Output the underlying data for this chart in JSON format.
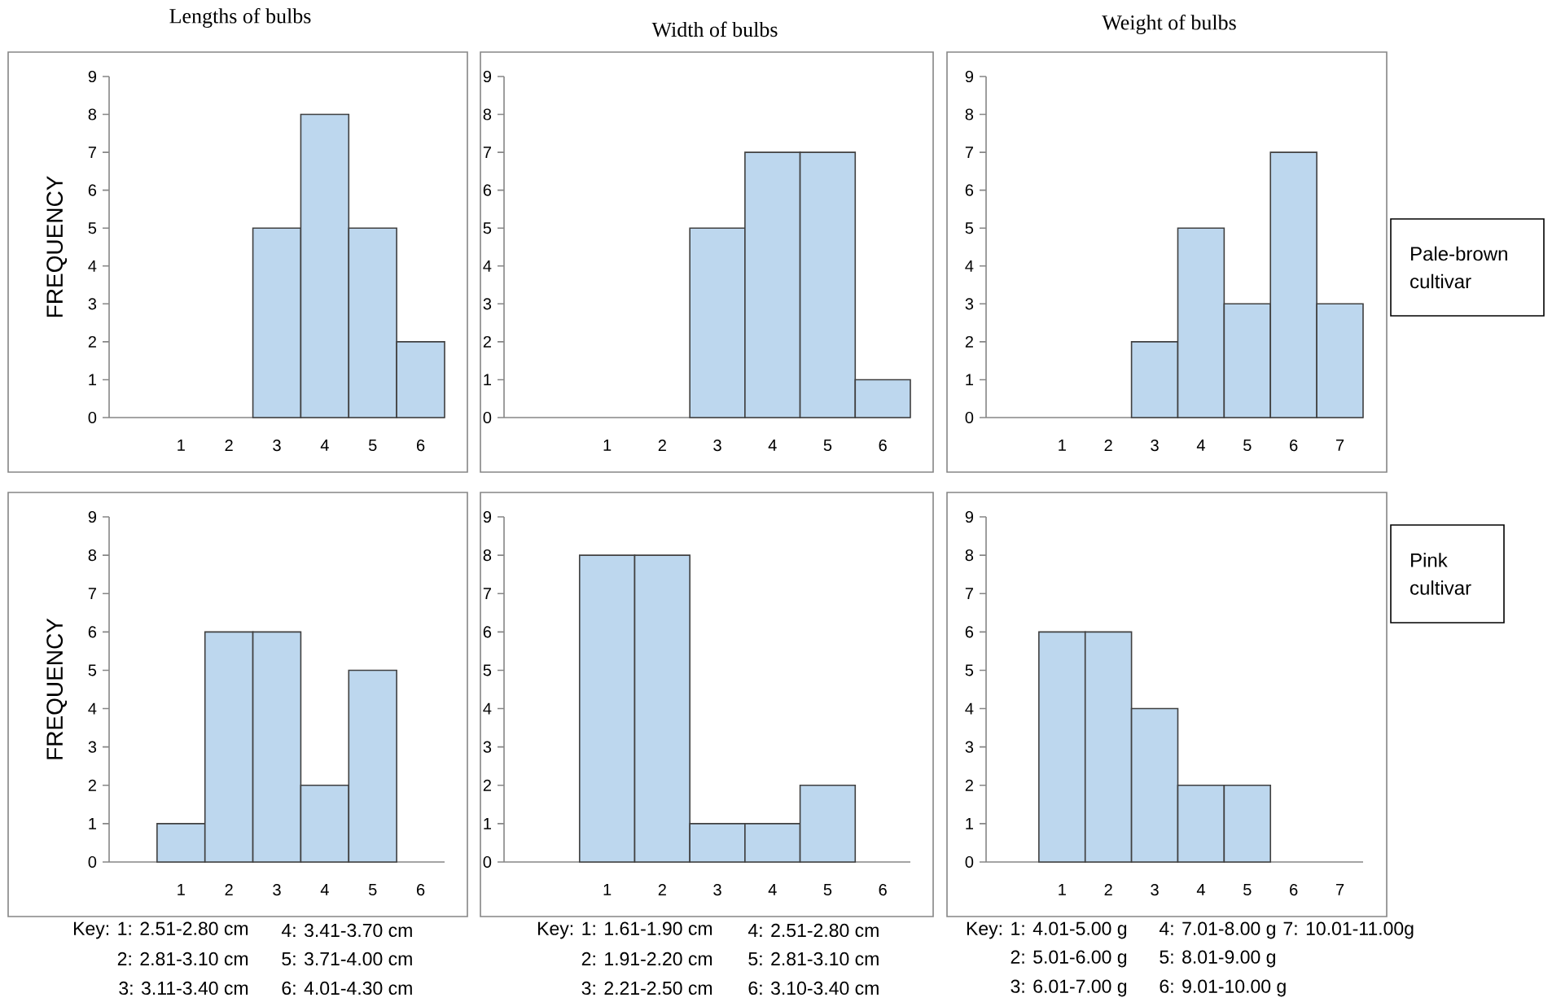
{
  "chart_data": [
    {
      "type": "bar",
      "title": "Lengths of bulbs",
      "ylabel": "FREQUENCY",
      "categories": [
        "1",
        "2",
        "3",
        "4",
        "5",
        "6"
      ],
      "values": [
        null,
        null,
        5,
        8,
        5,
        2
      ],
      "color": "#bdd7ee",
      "ylim": [
        0,
        9
      ],
      "yticks": [
        0,
        1,
        2,
        3,
        4,
        5,
        6,
        7,
        8,
        9
      ]
    },
    {
      "type": "bar",
      "title": "Width of bulbs",
      "categories": [
        "1",
        "2",
        "3",
        "4",
        "5",
        "6"
      ],
      "values": [
        null,
        null,
        5,
        7,
        7,
        1
      ],
      "color": "#bdd7ee",
      "ylim": [
        0,
        9
      ],
      "yticks": [
        0,
        1,
        2,
        3,
        4,
        5,
        6,
        7,
        8,
        9
      ]
    },
    {
      "type": "bar",
      "title": "Weight of bulbs",
      "categories": [
        "1",
        "2",
        "3",
        "4",
        "5",
        "6",
        "7"
      ],
      "values": [
        null,
        null,
        2,
        5,
        3,
        7,
        3
      ],
      "color": "#bdd7ee",
      "ylim": [
        0,
        9
      ],
      "yticks": [
        0,
        1,
        2,
        3,
        4,
        5,
        6,
        7,
        8,
        9
      ],
      "annotations": [
        "Pale-brown cultivar"
      ]
    },
    {
      "type": "bar",
      "ylabel": "FREQUENCY",
      "categories": [
        "1",
        "2",
        "3",
        "4",
        "5",
        "6"
      ],
      "values": [
        1,
        6,
        6,
        2,
        5,
        null
      ],
      "color": "#bdd7ee",
      "ylim": [
        0,
        9
      ],
      "yticks": [
        0,
        1,
        2,
        3,
        4,
        5,
        6,
        7,
        8,
        9
      ],
      "annotations": [
        "Key: 1: 2.51-2.80 cm",
        "2: 2.81-3.10 cm",
        "3: 3.11-3.40 cm",
        "4: 3.41-3.70 cm",
        "5: 3.71-4.00 cm",
        "6: 4.01-4.30 cm"
      ]
    },
    {
      "type": "bar",
      "categories": [
        "1",
        "2",
        "3",
        "4",
        "5",
        "6"
      ],
      "values": [
        8,
        8,
        1,
        1,
        2,
        null
      ],
      "color": "#bdd7ee",
      "ylim": [
        0,
        9
      ],
      "yticks": [
        0,
        1,
        2,
        3,
        4,
        5,
        6,
        7,
        8,
        9
      ],
      "annotations": [
        "Key: 1: 1.61-1.90 cm",
        "2: 1.91-2.20 cm",
        "3: 2.21-2.50 cm",
        "4: 2.51-2.80 cm",
        "5: 2.81-3.10 cm",
        "6: 3.10-3.40 cm"
      ]
    },
    {
      "type": "bar",
      "categories": [
        "1",
        "2",
        "3",
        "4",
        "5",
        "6",
        "7"
      ],
      "values": [
        6,
        6,
        4,
        2,
        2,
        null,
        null
      ],
      "color": "#bdd7ee",
      "ylim": [
        0,
        9
      ],
      "yticks": [
        0,
        1,
        2,
        3,
        4,
        5,
        6,
        7,
        8,
        9
      ],
      "annotations": [
        "Pink cultivar",
        "Key: 1: 4.01-5.00 g",
        "2: 5.01-6.00 g",
        "3: 6.01-7.00 g",
        "4: 7.01-8.00 g",
        "5: 8.01-9.00 g",
        "6: 9.01-10.00 g",
        "7: 10.01-11.00g"
      ]
    }
  ]
}
